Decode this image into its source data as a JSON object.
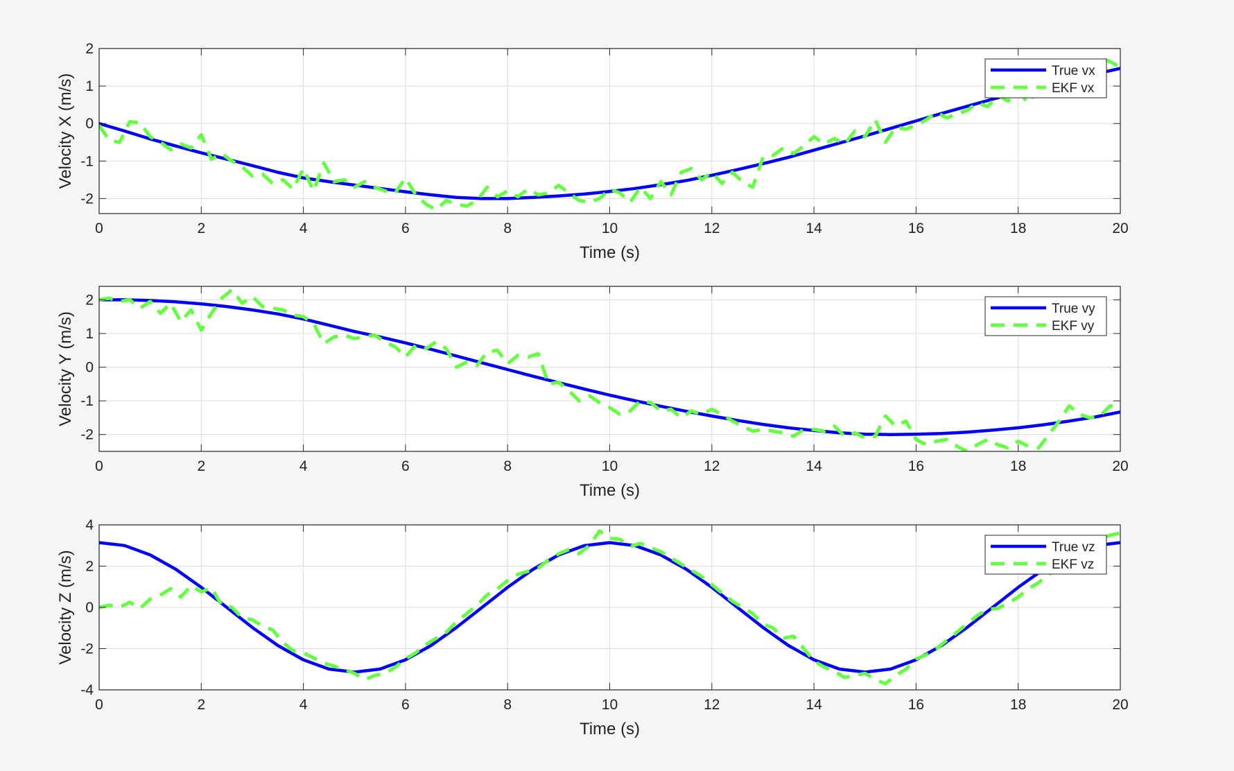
{
  "figure": {
    "background": "#f5f5f5"
  },
  "colors": {
    "true_line": "#0000ff",
    "ekf_line": "#66ff44",
    "grid": "#dcdcdc",
    "axis": "#262626"
  },
  "chart_data": [
    {
      "type": "line",
      "xlabel": "Time (s)",
      "ylabel": "Velocity X (m/s)",
      "xlim": [
        0,
        20
      ],
      "ylim": [
        -2.4,
        2
      ],
      "xticks": [
        0,
        2,
        4,
        6,
        8,
        10,
        12,
        14,
        16,
        18,
        20
      ],
      "yticks": [
        -2,
        -1,
        0,
        1,
        2
      ],
      "grid": true,
      "legend_position": "top-right",
      "series": [
        {
          "name": "True vx",
          "style": "solid",
          "color": "#0000ff",
          "x": [
            0,
            0.5,
            1,
            1.5,
            2,
            2.5,
            3,
            3.5,
            4,
            4.5,
            5,
            5.5,
            6,
            6.5,
            7,
            7.5,
            8,
            8.5,
            9,
            9.5,
            10,
            10.5,
            11,
            11.5,
            12,
            12.5,
            13,
            13.5,
            14,
            14.5,
            15,
            15.5,
            16,
            16.5,
            17,
            17.5,
            18,
            18.5,
            19,
            19.5,
            20
          ],
          "y": [
            0,
            -0.2,
            -0.41,
            -0.6,
            -0.78,
            -0.95,
            -1.12,
            -1.3,
            -1.45,
            -1.55,
            -1.64,
            -1.73,
            -1.82,
            -1.9,
            -1.97,
            -2.0,
            -2.0,
            -1.97,
            -1.93,
            -1.88,
            -1.81,
            -1.73,
            -1.63,
            -1.52,
            -1.38,
            -1.23,
            -1.07,
            -0.9,
            -0.71,
            -0.52,
            -0.33,
            -0.13,
            0.07,
            0.27,
            0.46,
            0.65,
            0.82,
            0.99,
            1.16,
            1.32,
            1.47
          ]
        },
        {
          "name": "EKF vx",
          "style": "dashed",
          "color": "#66ff44",
          "x": [
            0,
            0.2,
            0.4,
            0.6,
            0.8,
            1.0,
            1.2,
            1.4,
            1.6,
            1.8,
            2.0,
            2.2,
            2.4,
            2.6,
            2.8,
            3.0,
            3.2,
            3.4,
            3.6,
            3.8,
            4.0,
            4.2,
            4.4,
            4.6,
            4.8,
            5.0,
            5.2,
            5.4,
            5.6,
            5.8,
            6.0,
            6.2,
            6.4,
            6.6,
            6.8,
            7.0,
            7.2,
            7.4,
            7.6,
            7.8,
            8.0,
            8.2,
            8.4,
            8.6,
            8.8,
            9.0,
            9.2,
            9.4,
            9.6,
            9.8,
            10.0,
            10.2,
            10.4,
            10.6,
            10.8,
            11.0,
            11.2,
            11.4,
            11.6,
            11.8,
            12.0,
            12.2,
            12.4,
            12.6,
            12.8,
            13.0,
            13.2,
            13.4,
            13.6,
            13.8,
            14.0,
            14.2,
            14.4,
            14.6,
            14.8,
            15.0,
            15.2,
            15.4,
            15.6,
            15.8,
            16.0,
            16.2,
            16.4,
            16.6,
            16.8,
            17.0,
            17.2,
            17.4,
            17.6,
            17.8,
            18.0,
            18.2,
            18.4,
            18.6,
            18.8,
            19.0,
            19.2,
            19.4,
            19.6,
            19.8,
            20.0
          ],
          "y": [
            -0.05,
            -0.45,
            -0.5,
            0.05,
            0.02,
            -0.35,
            -0.5,
            -0.7,
            -0.55,
            -0.65,
            -0.3,
            -0.95,
            -0.8,
            -1.0,
            -1.15,
            -1.4,
            -1.35,
            -1.6,
            -1.5,
            -1.75,
            -1.2,
            -1.8,
            -1.05,
            -1.55,
            -1.5,
            -1.7,
            -1.55,
            -1.7,
            -1.8,
            -1.85,
            -1.45,
            -1.9,
            -2.15,
            -2.3,
            -2.05,
            -2.15,
            -2.2,
            -2.05,
            -1.7,
            -1.95,
            -1.8,
            -1.95,
            -1.75,
            -1.9,
            -1.85,
            -1.65,
            -1.85,
            -2.05,
            -2.1,
            -2.0,
            -1.75,
            -1.85,
            -2.1,
            -1.7,
            -2.0,
            -1.55,
            -1.9,
            -1.3,
            -1.2,
            -1.5,
            -1.3,
            -1.6,
            -1.3,
            -1.55,
            -1.7,
            -0.9,
            -0.85,
            -0.65,
            -0.8,
            -0.6,
            -0.35,
            -0.55,
            -0.4,
            -0.55,
            -0.2,
            -0.35,
            0.1,
            -0.5,
            -0.1,
            -0.15,
            -0.05,
            0.1,
            0.3,
            0.15,
            0.25,
            0.35,
            0.55,
            0.45,
            0.75,
            0.6,
            0.85,
            0.55,
            0.95,
            1.05,
            1.1,
            1.3,
            1.2,
            1.45,
            1.75,
            1.65,
            1.5
          ]
        }
      ]
    },
    {
      "type": "line",
      "xlabel": "Time (s)",
      "ylabel": "Velocity Y (m/s)",
      "xlim": [
        0,
        20
      ],
      "ylim": [
        -2.5,
        2.4
      ],
      "xticks": [
        0,
        2,
        4,
        6,
        8,
        10,
        12,
        14,
        16,
        18,
        20
      ],
      "yticks": [
        -2,
        -1,
        0,
        1,
        2
      ],
      "grid": true,
      "legend_position": "top-right",
      "series": [
        {
          "name": "True vy",
          "style": "solid",
          "color": "#0000ff",
          "x": [
            0,
            0.5,
            1,
            1.5,
            2,
            2.5,
            3,
            3.5,
            4,
            4.5,
            5,
            5.5,
            6,
            6.5,
            7,
            7.5,
            8,
            8.5,
            9,
            9.5,
            10,
            10.5,
            11,
            11.5,
            12,
            12.5,
            13,
            13.5,
            14,
            14.5,
            15,
            15.5,
            16,
            16.5,
            17,
            17.5,
            18,
            18.5,
            19,
            19.5,
            20
          ],
          "y": [
            2.0,
            2.0,
            1.98,
            1.94,
            1.88,
            1.8,
            1.7,
            1.58,
            1.43,
            1.25,
            1.06,
            0.9,
            0.72,
            0.53,
            0.33,
            0.13,
            -0.07,
            -0.27,
            -0.46,
            -0.65,
            -0.83,
            -1.0,
            -1.16,
            -1.31,
            -1.45,
            -1.58,
            -1.7,
            -1.8,
            -1.88,
            -1.95,
            -1.99,
            -2.0,
            -1.99,
            -1.97,
            -1.93,
            -1.87,
            -1.8,
            -1.71,
            -1.6,
            -1.48,
            -1.33
          ]
        },
        {
          "name": "EKF vy",
          "style": "dashed",
          "color": "#66ff44",
          "x": [
            0,
            0.2,
            0.4,
            0.6,
            0.8,
            1.0,
            1.2,
            1.4,
            1.6,
            1.8,
            2.0,
            2.2,
            2.4,
            2.6,
            2.8,
            3.0,
            3.2,
            3.4,
            3.6,
            3.8,
            4.0,
            4.2,
            4.4,
            4.6,
            4.8,
            5.0,
            5.2,
            5.4,
            5.6,
            5.8,
            6.0,
            6.2,
            6.4,
            6.6,
            6.8,
            7.0,
            7.2,
            7.4,
            7.6,
            7.8,
            8.0,
            8.2,
            8.4,
            8.6,
            8.8,
            9.0,
            9.2,
            9.4,
            9.6,
            9.8,
            10.0,
            10.2,
            10.4,
            10.6,
            10.8,
            11.0,
            11.2,
            11.4,
            11.6,
            11.8,
            12.0,
            12.2,
            12.4,
            12.6,
            12.8,
            13.0,
            13.2,
            13.4,
            13.6,
            13.8,
            14.0,
            14.2,
            14.4,
            14.6,
            14.8,
            15.0,
            15.2,
            15.4,
            15.6,
            15.8,
            16.0,
            16.2,
            16.4,
            16.6,
            16.8,
            17.0,
            17.2,
            17.4,
            17.6,
            17.8,
            18.0,
            18.2,
            18.4,
            18.6,
            18.8,
            19.0,
            19.2,
            19.4,
            19.6,
            19.8,
            20.0
          ],
          "y": [
            2.0,
            2.05,
            1.95,
            2.0,
            1.75,
            1.95,
            1.6,
            1.9,
            1.35,
            1.7,
            1.1,
            1.6,
            2.05,
            2.3,
            1.9,
            2.1,
            1.8,
            1.75,
            1.7,
            1.55,
            1.5,
            1.3,
            0.7,
            0.9,
            0.95,
            0.85,
            0.9,
            0.95,
            0.75,
            0.6,
            0.3,
            0.65,
            0.55,
            0.75,
            0.55,
            0.0,
            0.15,
            0.05,
            0.45,
            0.5,
            0.1,
            0.35,
            0.3,
            0.4,
            -0.5,
            -0.45,
            -0.7,
            -1.0,
            -0.85,
            -1.05,
            -1.2,
            -1.4,
            -1.3,
            -1.0,
            -1.05,
            -1.3,
            -1.25,
            -1.5,
            -1.3,
            -1.4,
            -1.25,
            -1.4,
            -1.6,
            -1.75,
            -1.9,
            -1.85,
            -1.9,
            -1.95,
            -2.05,
            -1.85,
            -1.85,
            -1.9,
            -1.75,
            -2.05,
            -1.95,
            -2.1,
            -2.05,
            -1.45,
            -1.75,
            -1.6,
            -2.15,
            -2.3,
            -2.2,
            -2.15,
            -2.35,
            -2.5,
            -2.3,
            -2.15,
            -2.3,
            -2.4,
            -2.2,
            -2.35,
            -2.4,
            -2.0,
            -1.6,
            -1.15,
            -1.4,
            -1.5,
            -1.45,
            -1.15,
            -1.2
          ]
        }
      ]
    },
    {
      "type": "line",
      "xlabel": "Time (s)",
      "ylabel": "Velocity Z (m/s)",
      "xlim": [
        0,
        20
      ],
      "ylim": [
        -4,
        4
      ],
      "xticks": [
        0,
        2,
        4,
        6,
        8,
        10,
        12,
        14,
        16,
        18,
        20
      ],
      "yticks": [
        -4,
        -2,
        0,
        2,
        4
      ],
      "grid": true,
      "legend_position": "top-right",
      "series": [
        {
          "name": "True vz",
          "style": "solid",
          "color": "#0000ff",
          "x": [
            0,
            0.5,
            1,
            1.5,
            2,
            2.5,
            3,
            3.5,
            4,
            4.5,
            5,
            5.5,
            6,
            6.5,
            7,
            7.5,
            8,
            8.5,
            9,
            9.5,
            10,
            10.5,
            11,
            11.5,
            12,
            12.5,
            13,
            13.5,
            14,
            14.5,
            15,
            15.5,
            16,
            16.5,
            17,
            17.5,
            18,
            18.5,
            19,
            19.5,
            20
          ],
          "y": [
            3.14,
            3.0,
            2.54,
            1.85,
            0.97,
            0.0,
            -0.97,
            -1.85,
            -2.54,
            -2.99,
            -3.14,
            -2.99,
            -2.54,
            -1.85,
            -0.97,
            0.0,
            0.97,
            1.85,
            2.54,
            2.99,
            3.14,
            2.99,
            2.54,
            1.85,
            0.97,
            0.0,
            -0.97,
            -1.85,
            -2.54,
            -2.99,
            -3.14,
            -2.99,
            -2.54,
            -1.85,
            -0.97,
            0.0,
            0.97,
            1.85,
            2.54,
            2.99,
            3.14
          ]
        },
        {
          "name": "EKF vz",
          "style": "dashed",
          "color": "#66ff44",
          "x": [
            0,
            0.2,
            0.4,
            0.6,
            0.8,
            1.0,
            1.2,
            1.4,
            1.6,
            1.8,
            2.0,
            2.2,
            2.4,
            2.6,
            2.8,
            3.0,
            3.2,
            3.4,
            3.6,
            3.8,
            4.0,
            4.2,
            4.4,
            4.6,
            4.8,
            5.0,
            5.2,
            5.4,
            5.6,
            5.8,
            6.0,
            6.2,
            6.4,
            6.6,
            6.8,
            7.0,
            7.2,
            7.4,
            7.6,
            7.8,
            8.0,
            8.2,
            8.4,
            8.6,
            8.8,
            9.0,
            9.2,
            9.4,
            9.6,
            9.8,
            10.0,
            10.2,
            10.4,
            10.6,
            10.8,
            11.0,
            11.2,
            11.4,
            11.6,
            11.8,
            12.0,
            12.2,
            12.4,
            12.6,
            12.8,
            13.0,
            13.2,
            13.4,
            13.6,
            13.8,
            14.0,
            14.2,
            14.4,
            14.6,
            14.8,
            15.0,
            15.2,
            15.4,
            15.6,
            15.8,
            16.0,
            16.2,
            16.4,
            16.6,
            16.8,
            17.0,
            17.2,
            17.4,
            17.6,
            17.8,
            18.0,
            18.2,
            18.4,
            18.6,
            18.8,
            19.0,
            19.2,
            19.4,
            19.6,
            19.8,
            20.0
          ],
          "y": [
            0.0,
            0.1,
            0.0,
            0.25,
            -0.05,
            0.4,
            0.6,
            0.9,
            0.5,
            1.05,
            0.75,
            0.95,
            0.1,
            0.0,
            -0.5,
            -0.6,
            -0.9,
            -1.1,
            -1.7,
            -2.1,
            -2.2,
            -2.45,
            -2.7,
            -2.85,
            -3.0,
            -3.2,
            -3.5,
            -3.3,
            -3.2,
            -2.9,
            -2.5,
            -2.2,
            -1.8,
            -1.5,
            -1.2,
            -0.7,
            -0.3,
            0.1,
            0.6,
            0.9,
            1.3,
            1.6,
            1.75,
            1.9,
            2.3,
            2.6,
            2.8,
            2.6,
            3.0,
            3.7,
            3.35,
            3.3,
            2.95,
            3.1,
            2.9,
            2.7,
            2.4,
            2.1,
            1.8,
            1.5,
            1.1,
            0.7,
            0.3,
            0.0,
            -0.3,
            -0.8,
            -1.0,
            -1.5,
            -1.4,
            -2.0,
            -2.6,
            -2.9,
            -3.1,
            -3.4,
            -3.3,
            -3.2,
            -3.5,
            -3.7,
            -3.3,
            -3.0,
            -2.5,
            -2.3,
            -2.0,
            -1.6,
            -1.2,
            -0.8,
            -0.4,
            -0.1,
            -0.05,
            0.2,
            0.5,
            0.9,
            1.2,
            1.6,
            2.0,
            2.4,
            2.8,
            3.0,
            3.3,
            3.5,
            3.6
          ]
        }
      ]
    }
  ]
}
